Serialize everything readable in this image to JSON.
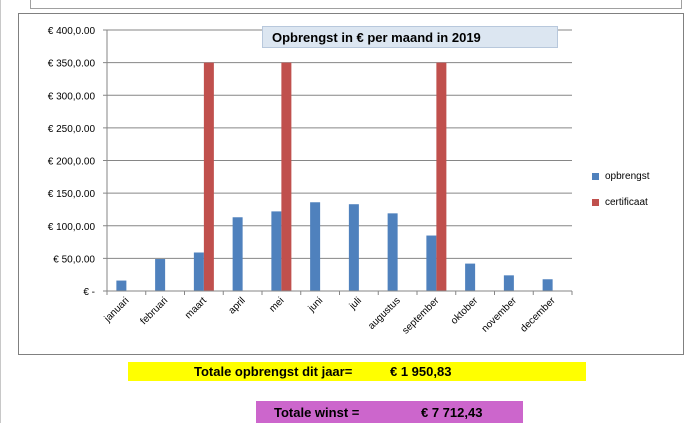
{
  "chart_data": {
    "type": "bar",
    "title": "Opbrengst in € per maand in 2019",
    "categories": [
      "januari",
      "februari",
      "maart",
      "april",
      "mei",
      "juni",
      "juli",
      "augustus",
      "september",
      "oktober",
      "november",
      "december"
    ],
    "series": [
      {
        "name": "opbrengst",
        "color": "#4f81bd",
        "values": [
          16,
          49,
          59,
          113,
          122,
          136,
          133,
          119,
          85,
          42,
          24,
          18
        ]
      },
      {
        "name": "certificaat",
        "color": "#c0504d",
        "values": [
          0,
          0,
          350,
          0,
          350,
          0,
          0,
          0,
          350,
          0,
          0,
          0
        ]
      }
    ],
    "y_ticks": [
      {
        "value": 0,
        "label": "€ -"
      },
      {
        "value": 50,
        "label": "€ 50,0.00"
      },
      {
        "value": 100,
        "label": "€ 100,0.00"
      },
      {
        "value": 150,
        "label": "€ 150,0.00"
      },
      {
        "value": 200,
        "label": "€ 200,0.00"
      },
      {
        "value": 250,
        "label": "€ 250,0.00"
      },
      {
        "value": 300,
        "label": "€ 300,0.00"
      },
      {
        "value": 350,
        "label": "€ 350,0.00"
      },
      {
        "value": 400,
        "label": "€ 400,0.00"
      }
    ],
    "ylim": [
      0,
      400
    ],
    "grid": true,
    "legend_position": "right"
  },
  "summary": {
    "total_label": "Totale opbrengst dit jaar=",
    "total_value": "€ 1 950,83",
    "winst_label": "Totale winst =",
    "winst_value": "€ 7 712,43"
  }
}
